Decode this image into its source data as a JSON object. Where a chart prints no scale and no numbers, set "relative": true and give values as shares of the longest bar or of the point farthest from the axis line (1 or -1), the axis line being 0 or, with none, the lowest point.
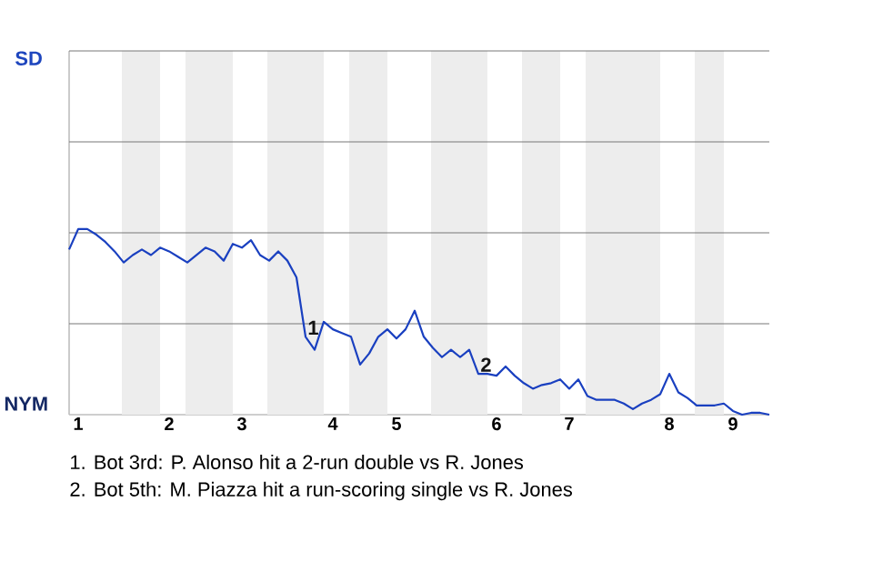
{
  "chart_data": {
    "type": "line",
    "relative": true,
    "marker": "none",
    "line_style": "solid",
    "categories": [
      null,
      "1",
      null,
      null,
      null,
      null,
      null,
      null,
      null,
      null,
      null,
      "2",
      null,
      null,
      null,
      null,
      null,
      null,
      null,
      "3",
      null,
      null,
      null,
      null,
      null,
      null,
      null,
      null,
      null,
      "4",
      null,
      null,
      null,
      null,
      null,
      null,
      "5",
      null,
      null,
      null,
      null,
      null,
      null,
      null,
      null,
      null,
      null,
      "6",
      null,
      null,
      null,
      null,
      null,
      null,
      null,
      "7",
      null,
      null,
      null,
      null,
      null,
      null,
      null,
      null,
      null,
      null,
      "8",
      null,
      null,
      null,
      null,
      null,
      null,
      "9",
      null,
      null,
      null,
      null
    ],
    "series": [
      {
        "color": "#1a40c0",
        "values": [
          0.89,
          1.0,
          1.0,
          0.97,
          0.93,
          0.88,
          0.82,
          0.86,
          0.89,
          0.86,
          0.9,
          0.88,
          0.85,
          0.82,
          0.86,
          0.9,
          0.88,
          0.83,
          0.92,
          0.9,
          0.94,
          0.86,
          0.83,
          0.88,
          0.83,
          0.74,
          0.42,
          0.35,
          0.5,
          0.46,
          0.44,
          0.42,
          0.27,
          0.33,
          0.42,
          0.46,
          0.41,
          0.46,
          0.56,
          0.42,
          0.36,
          0.31,
          0.35,
          0.31,
          0.35,
          0.22,
          0.22,
          0.21,
          0.26,
          0.21,
          0.17,
          0.14,
          0.16,
          0.17,
          0.19,
          0.14,
          0.19,
          0.1,
          0.08,
          0.08,
          0.08,
          0.06,
          0.03,
          0.06,
          0.08,
          0.11,
          0.22,
          0.12,
          0.09,
          0.05,
          0.05,
          0.05,
          0.06,
          0.02,
          0,
          0.01,
          0.01,
          0
        ]
      }
    ],
    "ref_lines": [
      {
        "axis": "y",
        "value": 0.49,
        "color": "#787878"
      },
      {
        "axis": "y",
        "value": 0.98,
        "color": "#787878"
      }
    ],
    "annotations": [
      "SD",
      "NYM",
      {
        "text": "1",
        "y": 0.42
      },
      {
        "text": "2",
        "y": 0.22
      },
      "1. Bot 3rd: P. Alonso hit a 2-run double vs R. Jones",
      "2. Bot 5th: M. Piazza hit a run-scoring single vs R. Jones"
    ]
  }
}
